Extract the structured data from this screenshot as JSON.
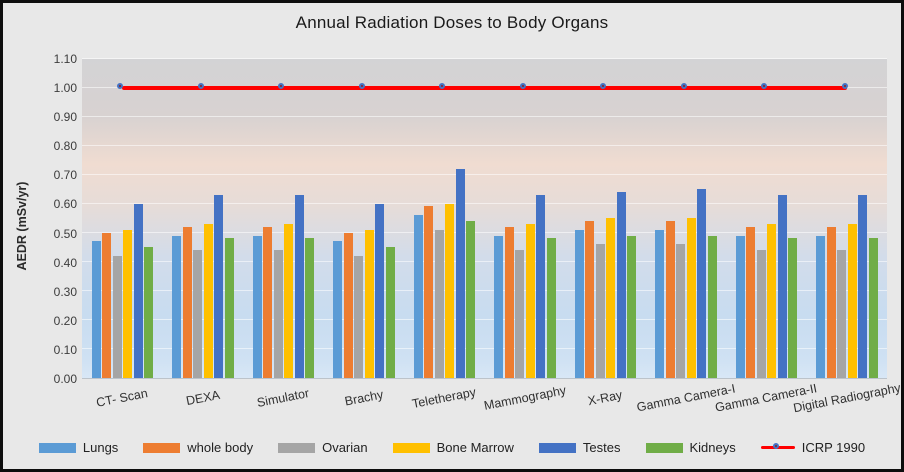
{
  "chart_data": {
    "type": "bar",
    "title": "Annual Radiation Doses to Body Organs",
    "xlabel": "",
    "ylabel": "AEDR (mSv/yr)",
    "ylim": [
      0,
      1.1
    ],
    "ytick_labels": [
      "0.00",
      "0.10",
      "0.20",
      "0.30",
      "0.40",
      "0.50",
      "0.60",
      "0.70",
      "0.80",
      "0.90",
      "1.00",
      "1.10"
    ],
    "grid": true,
    "legend_position": "bottom",
    "categories": [
      "CT- Scan",
      "DEXA",
      "Simulator",
      "Brachy",
      "Teletherapy",
      "Mammography",
      "X-Ray",
      "Gamma Camera-I",
      "Gamma Camera-II",
      "Digital Radiography"
    ],
    "series": [
      {
        "name": "Lungs",
        "color": "#5B9BD5",
        "values": [
          0.47,
          0.49,
          0.49,
          0.47,
          0.56,
          0.49,
          0.51,
          0.51,
          0.49,
          0.49
        ]
      },
      {
        "name": "whole body",
        "color": "#ED7D31",
        "values": [
          0.5,
          0.52,
          0.52,
          0.5,
          0.59,
          0.52,
          0.54,
          0.54,
          0.52,
          0.52
        ]
      },
      {
        "name": "Ovarian",
        "color": "#A5A5A5",
        "values": [
          0.42,
          0.44,
          0.44,
          0.42,
          0.51,
          0.44,
          0.46,
          0.46,
          0.44,
          0.44
        ]
      },
      {
        "name": "Bone Marrow",
        "color": "#FFC000",
        "values": [
          0.51,
          0.53,
          0.53,
          0.51,
          0.6,
          0.53,
          0.55,
          0.55,
          0.53,
          0.53
        ]
      },
      {
        "name": "Testes",
        "color": "#4472C4",
        "values": [
          0.6,
          0.63,
          0.63,
          0.6,
          0.72,
          0.63,
          0.64,
          0.65,
          0.63,
          0.63
        ]
      },
      {
        "name": "Kidneys",
        "color": "#70AD47",
        "values": [
          0.45,
          0.48,
          0.48,
          0.45,
          0.54,
          0.48,
          0.49,
          0.49,
          0.48,
          0.48
        ]
      }
    ],
    "line_series": [
      {
        "name": "ICRP 1990",
        "color": "#FF0000",
        "marker_fill": "#8B2020",
        "marker_border": "#4472C4",
        "values": [
          1.0,
          1.0,
          1.0,
          1.0,
          1.0,
          1.0,
          1.0,
          1.0,
          1.0,
          1.0
        ]
      }
    ]
  }
}
